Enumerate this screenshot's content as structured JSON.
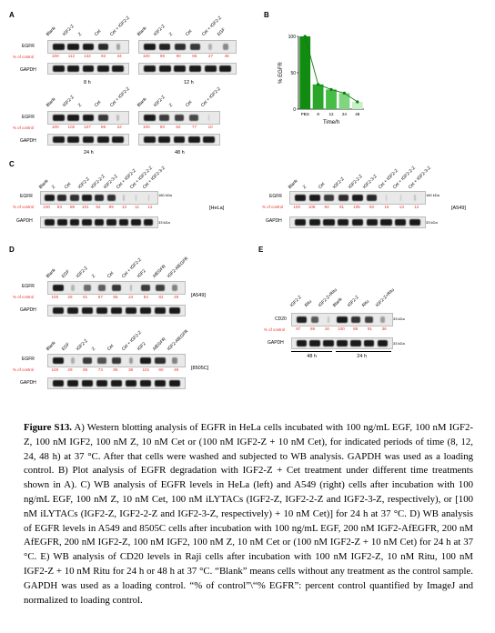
{
  "panels": {
    "a": {
      "label": "A",
      "blocks": [
        {
          "time": "8 h",
          "lanes": [
            "Blank",
            "IGF2-Z",
            "Z",
            "Cet",
            "Cet + IGF2-Z"
          ],
          "pct": [
            "100",
            "112",
            "132",
            "92",
            "34"
          ]
        },
        {
          "time": "12 h",
          "lanes": [
            "Blank",
            "IGF2-Z",
            "Z",
            "Cet",
            "Cet + IGF2-Z",
            "EGF"
          ],
          "pct": [
            "100",
            "96",
            "90",
            "85",
            "27",
            "46"
          ]
        },
        {
          "time": "24 h",
          "lanes": [
            "Blank",
            "IGF2-Z",
            "Z",
            "Cet",
            "Cet + IGF2-Z"
          ],
          "pct": [
            "100",
            "102",
            "107",
            "86",
            "22"
          ]
        },
        {
          "time": "48 h",
          "lanes": [
            "Blank",
            "IGF2-Z",
            "Z",
            "Cet",
            "Cet + IGF2-Z"
          ],
          "pct": [
            "100",
            "83",
            "82",
            "77",
            "10"
          ]
        }
      ],
      "row_egfr": "EGFR",
      "row_gapdh": "GAPDH",
      "pct_label": "% of control"
    },
    "b": {
      "label": "B",
      "ylabel": "% EGFR",
      "xlabel": "Time/h",
      "ticks": [
        "100",
        "50",
        "0"
      ]
    },
    "c": {
      "label": "C",
      "left": {
        "lanes": [
          "Blank",
          "Z",
          "Cet",
          "IGF2-Z",
          "IGF2-2-Z",
          "IGF2-3-Z",
          "Cet + IGF2-Z",
          "Cet + IGF2-2-Z",
          "Cet + IGF2-3-Z"
        ],
        "pct": [
          "100",
          "93",
          "89",
          "101",
          "92",
          "89",
          "13",
          "11",
          "12"
        ],
        "cell": "[HeLa]"
      },
      "right": {
        "lanes": [
          "Blank",
          "Z",
          "Cet",
          "IGF2-Z",
          "IGF2-2-Z",
          "IGF2-3-Z",
          "Cet + IGF2-Z",
          "Cet + IGF2-2-Z",
          "Cet + IGF2-3-Z"
        ],
        "pct": [
          "100",
          "108",
          "84",
          "91",
          "105",
          "93",
          "15",
          "13",
          "12"
        ],
        "cell": "[A549]"
      },
      "kda_egfr": "180 kDa",
      "kda_gapdh": "33 kDa"
    },
    "d": {
      "label": "D",
      "lanes": [
        "Blank",
        "EGF",
        "IGF2-Z",
        "Z",
        "Cet",
        "Cet + IGF2-Z",
        "IGF2",
        "AfEGFR",
        "IGF2-AfEGFR"
      ],
      "top": {
        "pct": [
          "100",
          "25",
          "61",
          "67",
          "86",
          "24",
          "84",
          "82",
          "49"
        ],
        "cell": "[A549]"
      },
      "bottom": {
        "pct": [
          "100",
          "29",
          "85",
          "73",
          "85",
          "36",
          "101",
          "90",
          "49"
        ],
        "cell": "[8505C]"
      }
    },
    "e": {
      "label": "E",
      "lanes": [
        "IGF2-Z",
        "Ritu",
        "IGF2-Z+Ritu",
        "Blank",
        "IGF2-Z",
        "Ritu",
        "IGF2-Z+Ritu"
      ],
      "pct": [
        "97",
        "69",
        "16",
        "100",
        "88",
        "81",
        "36"
      ],
      "row_cd20": "CD20",
      "times": [
        "48 h",
        "24 h"
      ],
      "kda_cd20": "33 kDa",
      "kda_gapdh": "33 kDa"
    }
  },
  "chart_data": {
    "type": "bar",
    "categories": [
      "PBS",
      "8",
      "12",
      "24",
      "48"
    ],
    "values": [
      100,
      34,
      27,
      22,
      10
    ],
    "ylabel": "% EGFR",
    "xlabel": "Time/h",
    "ylim": [
      0,
      100
    ],
    "colors": [
      "#118c11",
      "#2aa72a",
      "#46be46",
      "#7fd67f",
      "#c6f0c6"
    ]
  },
  "caption": {
    "title": "Figure S13.",
    "text": " A) Western blotting analysis of EGFR in HeLa cells incubated with 100 ng/mL EGF, 100 nM IGF2-Z, 100 nM IGF2, 100 nM Z, 10 nM Cet or (100 nM IGF2-Z + 10 nM Cet), for indicated periods of time (8, 12, 24, 48 h) at 37 °C. After that cells were washed and subjected to WB analysis. GAPDH was used as a loading control. B) Plot analysis of EGFR degradation with IGF2-Z + Cet treatment under different time treatments shown in A). C) WB analysis of EGFR levels in HeLa (left) and A549 (right) cells after incubation with 100 ng/mL EGF, 100 nM Z, 10 nM Cet, 100 nM iLYTACs (IGF2-Z, IGF2-2-Z and IGF2-3-Z, respectively), or [100 nM iLYTACs (IGF2-Z, IGF2-2-Z and IGF2-3-Z, respectively) + 10 nM Cet)] for 24 h at 37 °C. D) WB analysis of EGFR levels in A549 and 8505C cells after incubation with 100 ng/mL EGF, 200 nM IGF2-AfEGFR, 200 nM AfEGFR, 200 nM IGF2-Z, 100 nM IGF2, 100 nM Z, 10 nM Cet or (100 nM IGF2-Z + 10 nM Cet) for 24 h at 37 °C. E) WB analysis of CD20 levels in Raji cells after incubation with 100 nM IGF2-Z, 10 nM Ritu, 100 nM IGF2-Z + 10 nM Ritu for 24 h or 48 h at 37 °C. “Blank” means cells without any treatment as the control sample. GAPDH was used as a loading control. “% of control”\\“% EGFR”: percent control quantified by ImageJ and normalized to loading control."
  }
}
